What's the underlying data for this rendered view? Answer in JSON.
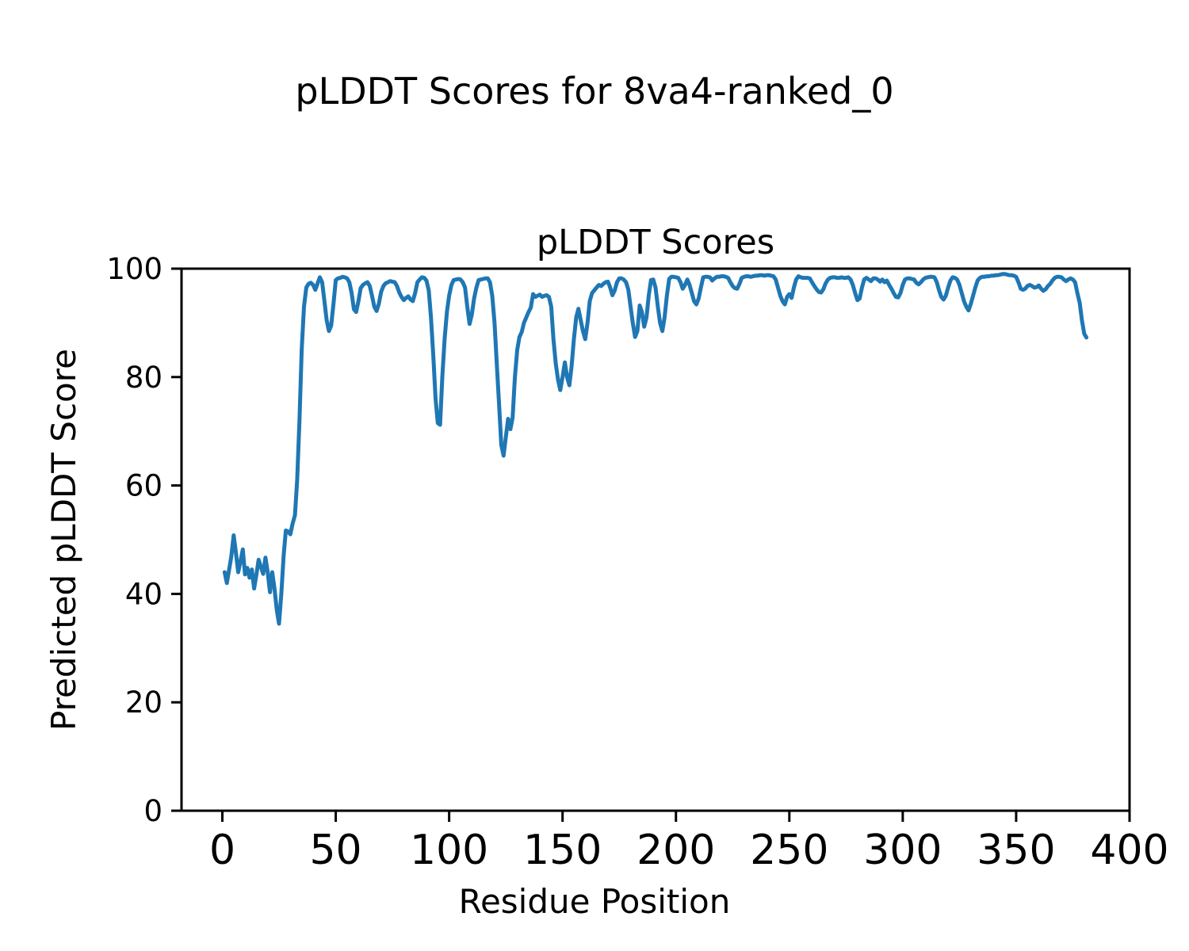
{
  "figure_title": "pLDDT Scores for 8va4-ranked_0",
  "chart_data": {
    "type": "line",
    "title": "pLDDT Scores",
    "xlabel": "Residue Position",
    "ylabel": "Predicted pLDDT Score",
    "xlim": [
      -18,
      400
    ],
    "ylim": [
      0,
      100
    ],
    "xticks": [
      0,
      50,
      100,
      150,
      200,
      250,
      300,
      350,
      400
    ],
    "yticks": [
      0,
      20,
      40,
      60,
      80,
      100
    ],
    "grid": false,
    "legend": null,
    "line_color": "#1f77b4",
    "series": [
      {
        "name": "pLDDT",
        "x_start": 1,
        "x_step": 1,
        "values": [
          44.0,
          42.0,
          44.5,
          47.0,
          50.8,
          47.5,
          44.0,
          46.0,
          48.2,
          43.6,
          44.8,
          43.0,
          44.5,
          41.0,
          43.5,
          46.3,
          45.0,
          43.7,
          46.7,
          44.0,
          40.3,
          44.0,
          41.0,
          37.0,
          34.5,
          40.0,
          47.0,
          51.7,
          51.5,
          51.0,
          53.0,
          54.5,
          61.0,
          72.0,
          85.0,
          93.0,
          96.5,
          97.2,
          97.4,
          97.0,
          96.1,
          97.3,
          98.4,
          97.5,
          94.0,
          90.5,
          88.5,
          89.5,
          93.5,
          97.9,
          98.2,
          98.3,
          98.5,
          98.4,
          98.2,
          97.5,
          95.5,
          92.5,
          92.0,
          94.0,
          96.4,
          97.0,
          97.3,
          97.5,
          96.8,
          95.0,
          93.0,
          92.2,
          93.5,
          95.7,
          96.8,
          97.3,
          97.5,
          97.7,
          97.6,
          97.5,
          96.8,
          95.6,
          94.8,
          94.2,
          94.6,
          94.9,
          94.3,
          94.0,
          95.5,
          97.5,
          98.0,
          98.4,
          98.3,
          97.8,
          96.0,
          91.0,
          84.0,
          76.0,
          71.5,
          71.2,
          80.0,
          87.0,
          92.0,
          95.0,
          97.0,
          97.9,
          98.0,
          98.1,
          98.0,
          97.5,
          96.5,
          93.0,
          89.8,
          91.5,
          94.5,
          96.5,
          97.9,
          98.0,
          98.1,
          98.2,
          98.2,
          97.5,
          95.0,
          90.0,
          82.5,
          75.0,
          67.5,
          65.5,
          69.0,
          72.3,
          70.4,
          72.5,
          80.0,
          85.0,
          87.4,
          88.3,
          90.0,
          91.0,
          92.0,
          92.8,
          95.3,
          94.8,
          95.0,
          95.2,
          94.8,
          95.0,
          95.1,
          94.8,
          93.0,
          87.0,
          82.5,
          79.5,
          77.6,
          80.0,
          82.7,
          80.0,
          78.5,
          82.0,
          87.0,
          91.0,
          92.6,
          90.5,
          88.5,
          87.0,
          90.0,
          94.0,
          95.5,
          96.0,
          96.5,
          97.0,
          96.8,
          97.2,
          97.5,
          97.6,
          96.5,
          95.1,
          96.0,
          97.5,
          98.2,
          98.2,
          98.0,
          97.5,
          96.1,
          93.0,
          89.9,
          87.4,
          88.5,
          93.2,
          92.0,
          89.3,
          91.0,
          95.0,
          97.9,
          98.0,
          96.5,
          93.0,
          90.0,
          88.5,
          91.0,
          95.0,
          98.1,
          98.5,
          98.5,
          98.4,
          98.3,
          97.5,
          96.3,
          97.0,
          98.0,
          97.0,
          95.5,
          94.0,
          93.4,
          94.5,
          96.5,
          98.4,
          98.5,
          98.5,
          98.4,
          97.8,
          98.2,
          98.5,
          98.5,
          98.6,
          98.6,
          98.5,
          98.3,
          97.5,
          96.8,
          96.4,
          96.3,
          97.2,
          98.3,
          98.5,
          98.6,
          98.6,
          98.5,
          98.6,
          98.7,
          98.7,
          98.8,
          98.8,
          98.7,
          98.8,
          98.8,
          98.7,
          98.6,
          98.0,
          96.5,
          95.0,
          94.0,
          93.4,
          94.8,
          95.3,
          94.6,
          96.5,
          98.0,
          98.6,
          98.4,
          98.3,
          98.3,
          98.3,
          98.2,
          97.5,
          96.8,
          96.2,
          95.7,
          95.6,
          96.2,
          97.3,
          98.0,
          98.3,
          98.4,
          98.4,
          98.3,
          98.3,
          98.4,
          98.3,
          98.3,
          98.4,
          98.0,
          97.0,
          95.5,
          94.2,
          94.5,
          96.5,
          98.0,
          98.3,
          98.0,
          97.7,
          98.2,
          98.2,
          98.0,
          97.6,
          98.0,
          97.5,
          97.8,
          97.0,
          96.3,
          95.5,
          94.8,
          94.7,
          95.5,
          97.0,
          98.0,
          98.2,
          98.2,
          98.1,
          98.0,
          97.4,
          97.1,
          97.5,
          98.0,
          98.3,
          98.4,
          98.5,
          98.5,
          98.4,
          97.5,
          96.0,
          94.8,
          94.3,
          95.0,
          96.5,
          97.8,
          98.4,
          98.3,
          98.0,
          97.0,
          95.5,
          94.0,
          93.0,
          92.3,
          93.5,
          95.0,
          96.5,
          97.8,
          98.3,
          98.5,
          98.5,
          98.6,
          98.6,
          98.7,
          98.7,
          98.8,
          98.8,
          98.9,
          99.0,
          99.0,
          98.9,
          98.8,
          98.8,
          98.7,
          98.5,
          97.5,
          96.3,
          96.1,
          96.3,
          96.8,
          97.0,
          96.8,
          96.5,
          96.6,
          96.9,
          96.3,
          95.9,
          96.2,
          96.8,
          97.2,
          97.8,
          98.3,
          98.5,
          98.5,
          98.4,
          98.0,
          97.7,
          98.0,
          98.2,
          98.0,
          97.5,
          95.5,
          93.7,
          90.5,
          88.0,
          87.3
        ]
      }
    ]
  }
}
